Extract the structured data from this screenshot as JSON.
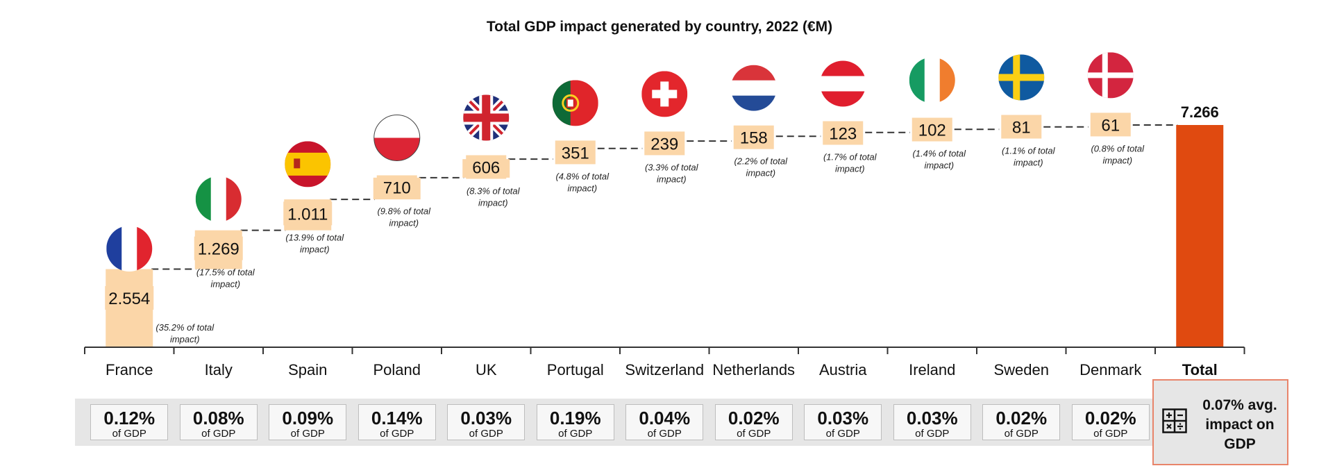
{
  "chart_data": {
    "type": "waterfall",
    "title": "Total GDP impact generated by country, 2022 (€M)",
    "categories": [
      "France",
      "Italy",
      "Spain",
      "Poland",
      "UK",
      "Portugal",
      "Switzerland",
      "Netherlands",
      "Austria",
      "Ireland",
      "Sweden",
      "Denmark"
    ],
    "values": [
      2554,
      1269,
      1011,
      710,
      606,
      351,
      239,
      158,
      123,
      102,
      81,
      61
    ],
    "value_labels": [
      "2.554",
      "1.269",
      "1.011",
      "710",
      "606",
      "351",
      "239",
      "158",
      "123",
      "102",
      "81",
      "61"
    ],
    "share_labels": [
      "(35.2% of total impact)",
      "(17.5% of total impact)",
      "(13.9% of total impact)",
      "(9.8% of total impact)",
      "(8.3% of total impact)",
      "(4.8% of total impact)",
      "(3.3% of total impact)",
      "(2.2% of total impact)",
      "(1.7% of total impact)",
      "(1.4% of total impact)",
      "(1.1% of total impact)",
      "(0.8% of total impact)"
    ],
    "total": {
      "label": "Total",
      "value": 7266,
      "value_label": "7.266"
    },
    "ylim": [
      0,
      7266
    ],
    "gdp_impact": [
      "0.12%",
      "0.08%",
      "0.09%",
      "0.14%",
      "0.03%",
      "0.19%",
      "0.04%",
      "0.02%",
      "0.03%",
      "0.03%",
      "0.02%",
      "0.02%"
    ],
    "gdp_suffix": "of GDP",
    "avg_gdp_impact": "0.07% avg. impact on GDP",
    "colors": {
      "bars": "#fbd6a8",
      "total": "#e04a10",
      "connector": "#333333"
    },
    "flags": [
      "france-flag",
      "italy-flag",
      "spain-flag",
      "poland-flag",
      "uk-flag",
      "portugal-flag",
      "switzerland-flag",
      "netherlands-flag",
      "austria-flag",
      "ireland-flag",
      "sweden-flag",
      "denmark-flag"
    ]
  }
}
